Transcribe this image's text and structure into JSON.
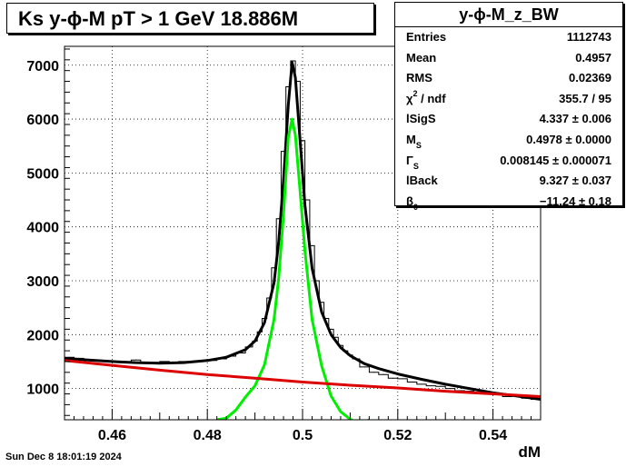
{
  "title": "Ks y-ϕ-M pT > 1 GeV   18.886M",
  "stats": {
    "name": "y-ϕ-M_z_BW",
    "rows": [
      {
        "label": "Entries",
        "sub": "",
        "sup": "",
        "suffix": "",
        "value": "1112743"
      },
      {
        "label": "Mean",
        "sub": "",
        "sup": "",
        "suffix": "",
        "value": "0.4957"
      },
      {
        "label": "RMS",
        "sub": "",
        "sup": "",
        "suffix": "",
        "value": "0.02369"
      },
      {
        "label": "χ",
        "sub": "",
        "sup": "2",
        "suffix": " / ndf",
        "value": "355.7 / 95"
      },
      {
        "label": "lSigS",
        "sub": "",
        "sup": "",
        "suffix": "",
        "value": "4.337 ± 0.006"
      },
      {
        "label": "M",
        "sub": "S",
        "sup": "",
        "suffix": "",
        "value": "0.4978 ± 0.0000"
      },
      {
        "label": "Γ",
        "sub": "S",
        "sup": "",
        "suffix": "",
        "value": "0.008145 ± 0.000071"
      },
      {
        "label": "lBack",
        "sub": "",
        "sup": "",
        "suffix": "",
        "value": "9.327 ± 0.037"
      },
      {
        "label": "β",
        "sub": "0",
        "sup": "",
        "suffix": "",
        "value": "−11.24 ± 0.18"
      }
    ]
  },
  "footer": {
    "date": "Sun Dec  8 18:01:19 2024"
  },
  "chart_data": {
    "type": "line",
    "xlabel": "dM",
    "ylabel": "",
    "xlim": [
      0.45,
      0.55
    ],
    "ylim": [
      420,
      7350
    ],
    "xticks": [
      "0.46",
      "0.48",
      "0.5",
      "0.52",
      "0.54"
    ],
    "xtick_values": [
      0.46,
      0.48,
      0.5,
      0.52,
      0.54
    ],
    "yticks": [
      "1000",
      "2000",
      "3000",
      "4000",
      "5000",
      "6000",
      "7000"
    ],
    "ytick_values": [
      1000,
      2000,
      3000,
      4000,
      5000,
      6000,
      7000
    ],
    "grid": true,
    "colors": {
      "histogram": "#000000",
      "total_fit": "#000000",
      "signal": "#00ee00",
      "background": "#dd0000"
    },
    "series": [
      {
        "kind": "histogram",
        "x": [
          0.451,
          0.453,
          0.455,
          0.457,
          0.459,
          0.461,
          0.463,
          0.465,
          0.467,
          0.469,
          0.471,
          0.473,
          0.475,
          0.477,
          0.479,
          0.481,
          0.483,
          0.485,
          0.487,
          0.489,
          0.49,
          0.491,
          0.492,
          0.493,
          0.494,
          0.495,
          0.496,
          0.497,
          0.498,
          0.499,
          0.5,
          0.501,
          0.502,
          0.503,
          0.504,
          0.505,
          0.506,
          0.507,
          0.508,
          0.509,
          0.51,
          0.511,
          0.513,
          0.515,
          0.517,
          0.519,
          0.521,
          0.523,
          0.525,
          0.527,
          0.529,
          0.531,
          0.533,
          0.535,
          0.537,
          0.539,
          0.541,
          0.543,
          0.545,
          0.547,
          0.549
        ],
        "y": [
          1580,
          1560,
          1540,
          1520,
          1500,
          1500,
          1480,
          1530,
          1480,
          1480,
          1500,
          1470,
          1500,
          1490,
          1510,
          1520,
          1550,
          1600,
          1660,
          1770,
          1880,
          2050,
          2300,
          2680,
          3240,
          4150,
          5400,
          6600,
          7080,
          6700,
          5600,
          4500,
          3650,
          3000,
          2600,
          2300,
          2100,
          1950,
          1800,
          1700,
          1620,
          1550,
          1400,
          1300,
          1260,
          1190,
          1180,
          1120,
          1080,
          1050,
          1040,
          1000,
          960,
          950,
          920,
          900,
          890,
          850,
          860,
          820,
          800
        ]
      },
      {
        "name": "",
        "kind": "total_fit",
        "x": [
          0.45,
          0.455,
          0.46,
          0.465,
          0.47,
          0.475,
          0.48,
          0.484,
          0.488,
          0.49,
          0.492,
          0.494,
          0.495,
          0.496,
          0.497,
          0.4978,
          0.4985,
          0.4995,
          0.5005,
          0.502,
          0.504,
          0.506,
          0.508,
          0.51,
          0.513,
          0.516,
          0.52,
          0.525,
          0.53,
          0.535,
          0.54,
          0.545,
          0.55
        ],
        "y": [
          1560,
          1530,
          1500,
          1480,
          1470,
          1480,
          1520,
          1580,
          1720,
          1880,
          2220,
          2960,
          3730,
          4860,
          6260,
          7050,
          6770,
          5580,
          4410,
          3230,
          2420,
          2000,
          1760,
          1610,
          1460,
          1370,
          1270,
          1170,
          1080,
          1000,
          920,
          860,
          800
        ]
      },
      {
        "name": "",
        "kind": "signal",
        "x": [
          0.482,
          0.484,
          0.486,
          0.488,
          0.49,
          0.492,
          0.494,
          0.495,
          0.496,
          0.497,
          0.4978,
          0.4985,
          0.4995,
          0.5005,
          0.502,
          0.504,
          0.506,
          0.508,
          0.51,
          0.512,
          0.514
        ],
        "y": [
          420,
          450,
          600,
          840,
          1050,
          1440,
          2280,
          3060,
          4220,
          5660,
          6000,
          5700,
          4640,
          3560,
          2280,
          1420,
          860,
          570,
          430,
          330,
          420
        ]
      },
      {
        "name": "",
        "kind": "background",
        "x": [
          0.45,
          0.46,
          0.47,
          0.48,
          0.49,
          0.5,
          0.51,
          0.52,
          0.53,
          0.54,
          0.55
        ],
        "y": [
          1520,
          1430,
          1340,
          1260,
          1190,
          1120,
          1060,
          1010,
          950,
          900,
          850
        ]
      }
    ]
  }
}
